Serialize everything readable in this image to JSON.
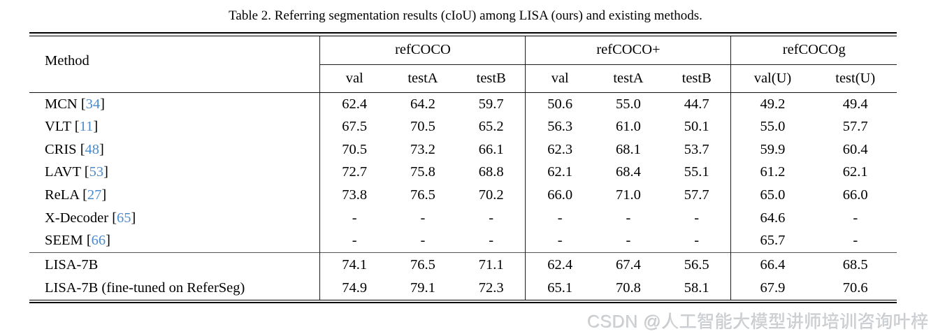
{
  "caption": "Table 2. Referring segmentation results (cIoU) among LISA (ours) and existing methods.",
  "watermark": "CSDN @人工智能大模型讲师培训咨询叶梓",
  "colors": {
    "citation_blue": "#4a8bce",
    "text_black": "#000000",
    "watermark_gray": "#ced1d4"
  },
  "table": {
    "method_header": "Method",
    "groups": [
      {
        "label": "refCOCO",
        "cols": [
          "val",
          "testA",
          "testB"
        ]
      },
      {
        "label": "refCOCO+",
        "cols": [
          "val",
          "testA",
          "testB"
        ]
      },
      {
        "label": "refCOCOg",
        "cols": [
          "val(U)",
          "test(U)"
        ]
      }
    ],
    "rows": [
      {
        "method": "MCN",
        "cite": "34",
        "section_start": false,
        "cells": [
          "62.4",
          "64.2",
          "59.7",
          "50.6",
          "55.0",
          "44.7",
          "49.2",
          "49.4"
        ],
        "bold": []
      },
      {
        "method": "VLT",
        "cite": "11",
        "section_start": false,
        "cells": [
          "67.5",
          "70.5",
          "65.2",
          "56.3",
          "61.0",
          "50.1",
          "55.0",
          "57.7"
        ],
        "bold": []
      },
      {
        "method": "CRIS",
        "cite": "48",
        "section_start": false,
        "cells": [
          "70.5",
          "73.2",
          "66.1",
          "62.3",
          "68.1",
          "53.7",
          "59.9",
          "60.4"
        ],
        "bold": []
      },
      {
        "method": "LAVT",
        "cite": "53",
        "section_start": false,
        "cells": [
          "72.7",
          "75.8",
          "68.8",
          "62.1",
          "68.4",
          "55.1",
          "61.2",
          "62.1"
        ],
        "bold": []
      },
      {
        "method": "ReLA",
        "cite": "27",
        "section_start": false,
        "cells": [
          "73.8",
          "76.5",
          "70.2",
          "66.0",
          "71.0",
          "57.7",
          "65.0",
          "66.0"
        ],
        "bold": [
          3,
          4
        ]
      },
      {
        "method": "X-Decoder",
        "cite": "65",
        "section_start": false,
        "cells": [
          "-",
          "-",
          "-",
          "-",
          "-",
          "-",
          "64.6",
          "-"
        ],
        "bold": []
      },
      {
        "method": "SEEM",
        "cite": "66",
        "section_start": false,
        "cells": [
          "-",
          "-",
          "-",
          "-",
          "-",
          "-",
          "65.7",
          "-"
        ],
        "bold": []
      },
      {
        "method": "LISA-7B",
        "cite": "",
        "section_start": true,
        "cells": [
          "74.1",
          "76.5",
          "71.1",
          "62.4",
          "67.4",
          "56.5",
          "66.4",
          "68.5"
        ],
        "bold": []
      },
      {
        "method": "LISA-7B (fine-tuned on ReferSeg)",
        "cite": "",
        "section_start": false,
        "cells": [
          "74.9",
          "79.1",
          "72.3",
          "65.1",
          "70.8",
          "58.1",
          "67.9",
          "70.6"
        ],
        "bold": [
          0,
          1,
          2,
          5,
          6,
          7
        ]
      }
    ]
  }
}
